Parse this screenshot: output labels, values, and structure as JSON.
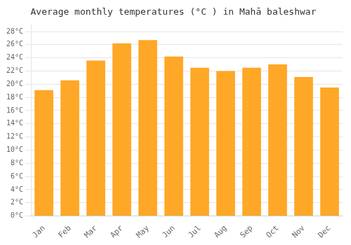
{
  "chart_data": {
    "type": "bar",
    "title": "Average monthly temperatures (°C ) in Mahā baleshwar",
    "categories": [
      "Jan",
      "Feb",
      "Mar",
      "Apr",
      "May",
      "Jun",
      "Jul",
      "Aug",
      "Sep",
      "Oct",
      "Nov",
      "Dec"
    ],
    "values": [
      19.1,
      20.6,
      23.6,
      26.2,
      26.7,
      24.2,
      22.5,
      22.0,
      22.5,
      23.0,
      21.1,
      19.5
    ],
    "color": "#FFA726",
    "ylim": [
      0,
      29
    ],
    "yticks": [
      {
        "value": 0,
        "label": "0°C"
      },
      {
        "value": 2,
        "label": "2°C"
      },
      {
        "value": 4,
        "label": "4°C"
      },
      {
        "value": 6,
        "label": "6°C"
      },
      {
        "value": 8,
        "label": "8°C"
      },
      {
        "value": 10,
        "label": "10°C"
      },
      {
        "value": 12,
        "label": "12°C"
      },
      {
        "value": 14,
        "label": "14°C"
      },
      {
        "value": 16,
        "label": "16°C"
      },
      {
        "value": 18,
        "label": "18°C"
      },
      {
        "value": 20,
        "label": "20°C"
      },
      {
        "value": 22,
        "label": "22°C"
      },
      {
        "value": 24,
        "label": "24°C"
      },
      {
        "value": 26,
        "label": "26°C"
      },
      {
        "value": 28,
        "label": "28°C"
      }
    ],
    "grid": true
  }
}
